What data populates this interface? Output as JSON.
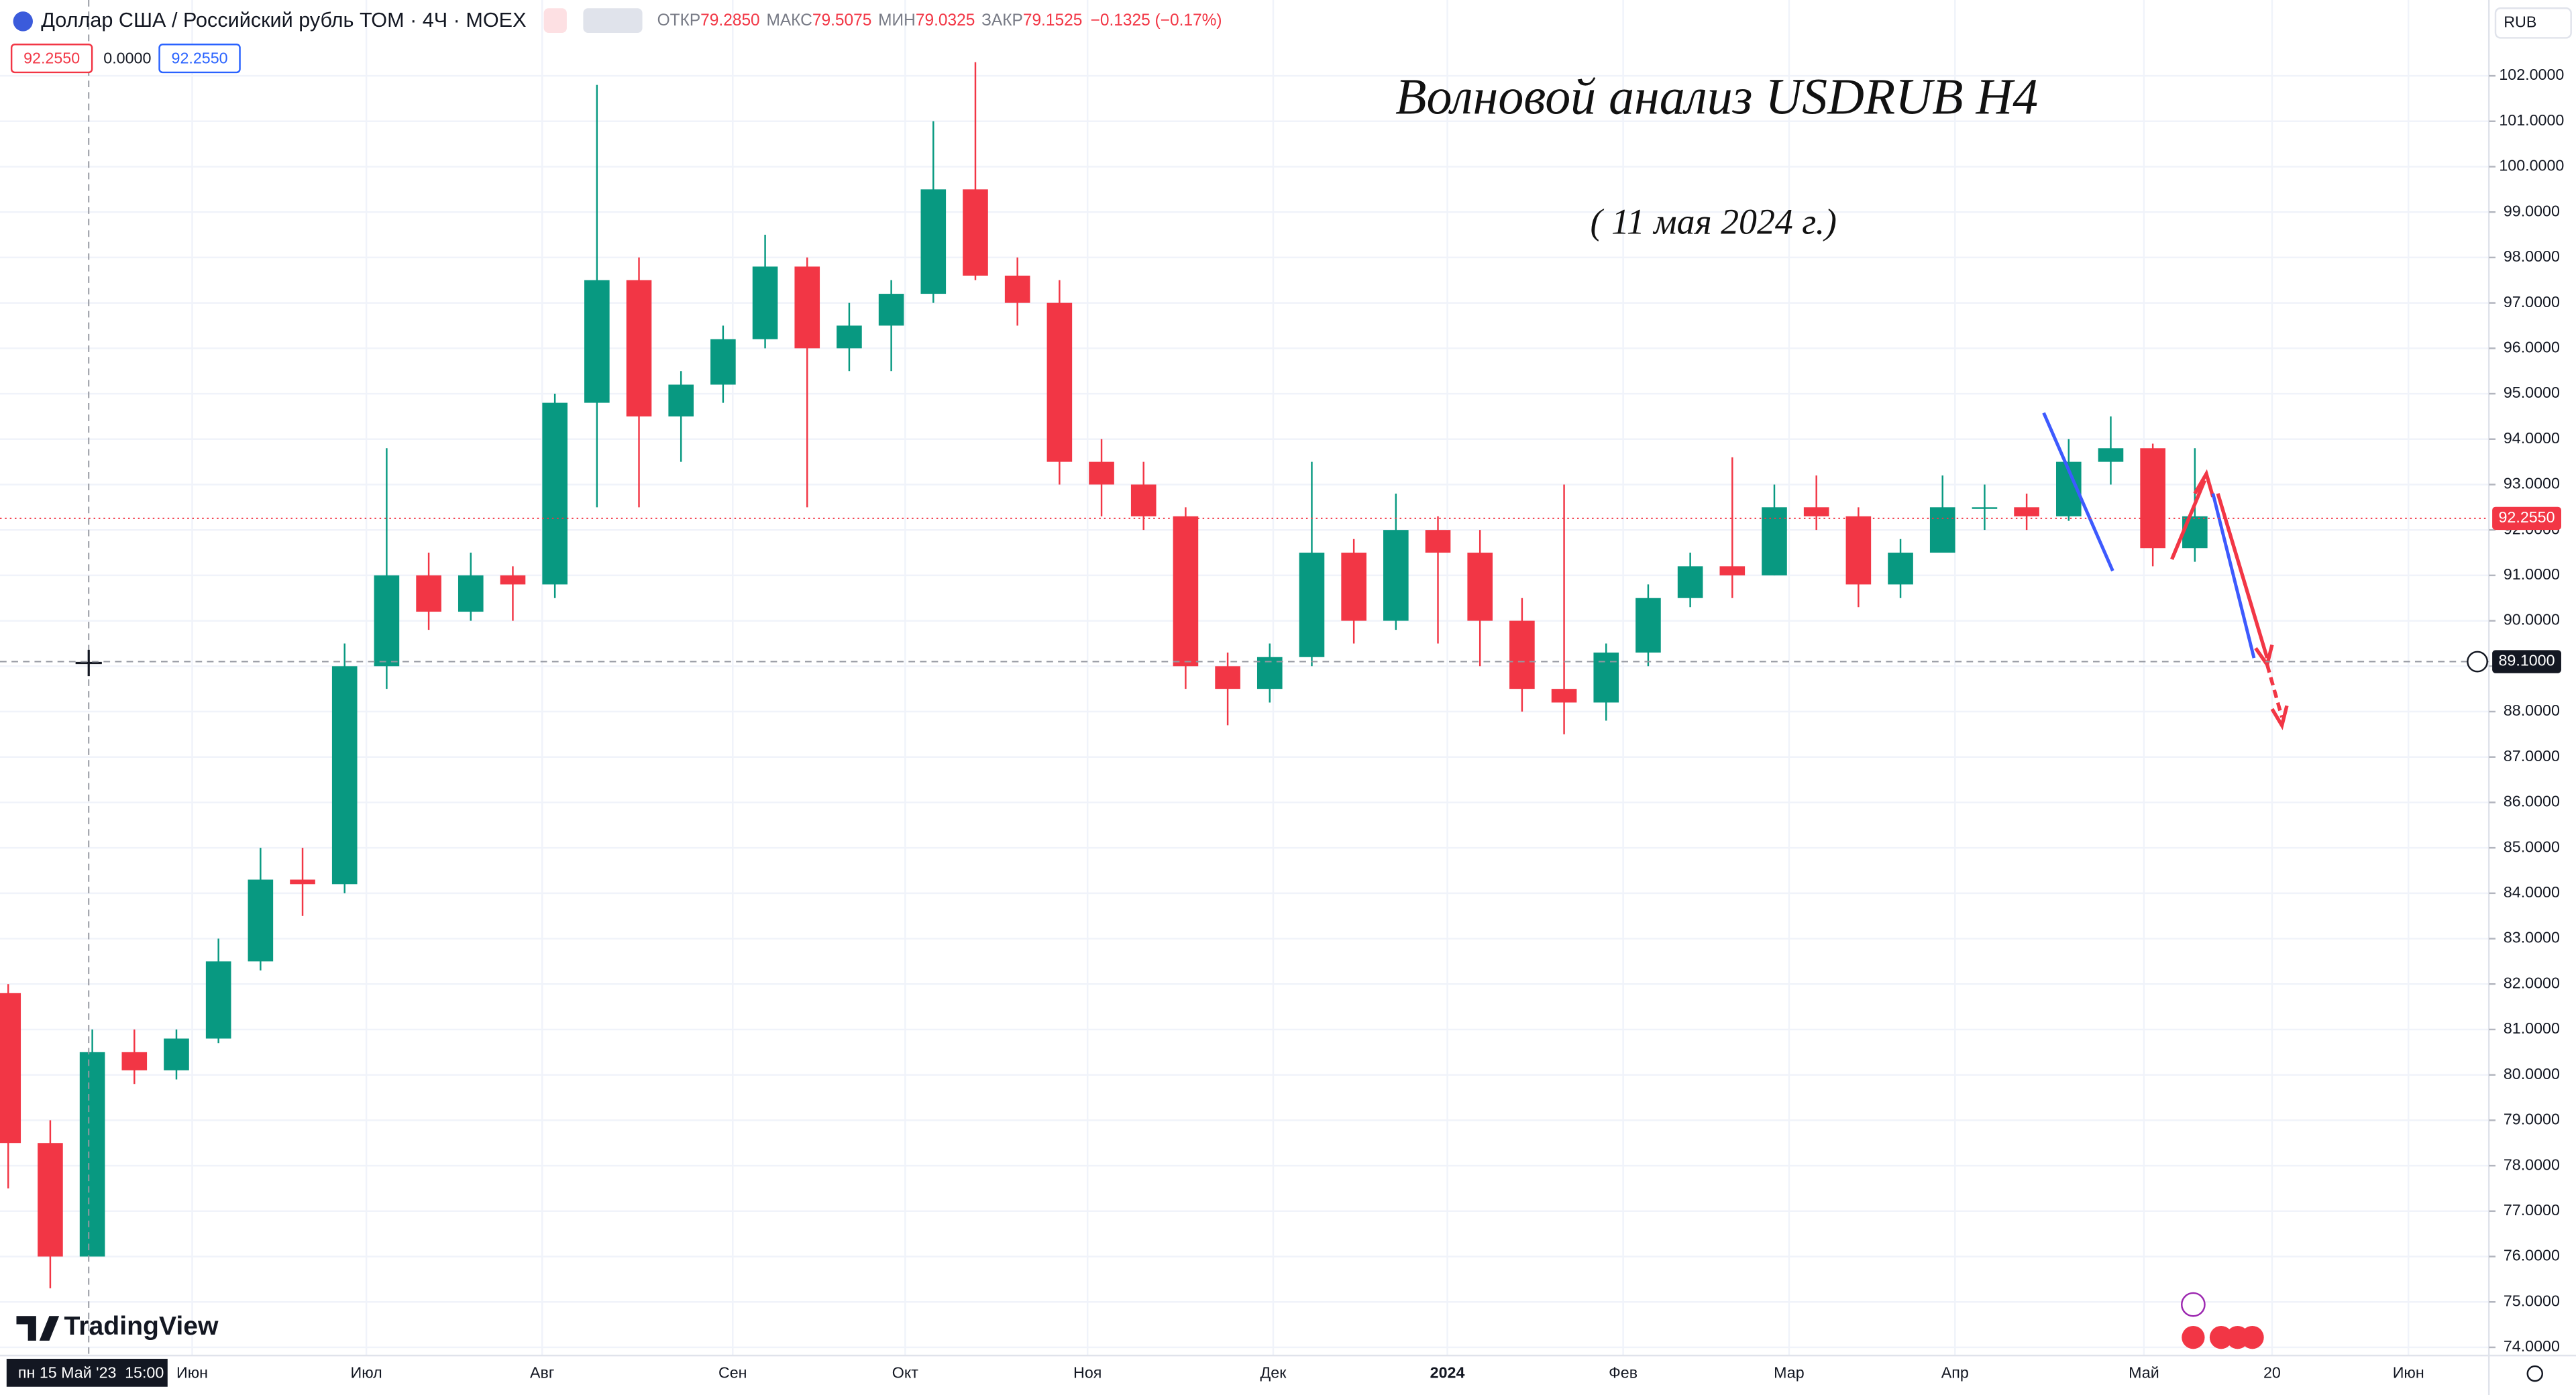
{
  "header": {
    "symbol": "Доллар США / Российский рубль ТОМ · 4Ч · MOEX",
    "open_label": "ОТКР",
    "open": "79.2850",
    "high_label": "МАКС",
    "high": "79.5075",
    "low_label": "МИН",
    "low": "79.0325",
    "close_label": "ЗАКР",
    "close": "79.1525",
    "change": "−0.1325 (−0.17%)",
    "box_left": "92.2550",
    "box_mid": "0.0000",
    "box_right": "92.2550",
    "currency": "RUB",
    "logo": "TradingView"
  },
  "chart_data": {
    "type": "candlestick",
    "title": "Волновой анализ USDRUB H4",
    "subtitle": "( 11 мая 2024 г.)",
    "up_color": "#089981",
    "down_color": "#f23645",
    "grid": true,
    "open": [
      81.8,
      78.5,
      76,
      80.5,
      80.1,
      80.8,
      82.5,
      84.3,
      84.2,
      89,
      91,
      90.2,
      91,
      90.8,
      94.8,
      97.5,
      94.5,
      95.2,
      96.2,
      97.8,
      96,
      96.5,
      97.2,
      99.5,
      97.6,
      97,
      93.5,
      93,
      92.3,
      89,
      88.5,
      89.2,
      91.5,
      90,
      92,
      91.5,
      90,
      88.5,
      88.2,
      89.3,
      90.5,
      91.2,
      91,
      92.5,
      92.3,
      90.8,
      91.5,
      92.5,
      92.5,
      92.3,
      93.5,
      93.8,
      91.6
    ],
    "high": [
      82,
      79,
      81,
      81,
      81,
      83,
      85,
      85,
      89.5,
      93.8,
      91.5,
      91.5,
      91.2,
      95,
      101.8,
      98,
      95.5,
      96.5,
      98.5,
      98,
      97,
      97.5,
      101,
      102.3,
      98,
      97.5,
      94,
      93.5,
      92.5,
      89.3,
      89.5,
      93.5,
      91.8,
      92.8,
      92.3,
      92,
      90.5,
      93,
      89.5,
      90.8,
      91.5,
      93.6,
      93,
      93.2,
      92.5,
      91.8,
      93.2,
      93,
      92.8,
      94,
      94.5,
      93.9,
      93.8
    ],
    "low": [
      77.5,
      75.3,
      76,
      79.8,
      79.9,
      80.7,
      82.3,
      83.5,
      84,
      88.5,
      89.8,
      90,
      90,
      90.5,
      92.5,
      92.5,
      93.5,
      94.8,
      96,
      92.5,
      95.5,
      95.5,
      97,
      97.5,
      96.5,
      93,
      92.3,
      92,
      88.5,
      87.7,
      88.2,
      89,
      89.5,
      89.8,
      89.5,
      89,
      88,
      87.5,
      87.8,
      89,
      90.3,
      90.5,
      91,
      92,
      90.3,
      90.5,
      91.5,
      92,
      92,
      92.2,
      93,
      91.2,
      91.3
    ],
    "close": [
      78.5,
      76,
      80.5,
      80.1,
      80.8,
      82.5,
      84.3,
      84.2,
      89,
      91,
      90.2,
      91,
      90.8,
      94.8,
      97.5,
      94.5,
      95.2,
      96.2,
      97.8,
      96,
      96.5,
      97.2,
      99.5,
      97.6,
      97,
      93.5,
      93,
      92.3,
      89,
      88.5,
      89.2,
      91.5,
      90,
      92,
      91.5,
      90,
      88.5,
      88.2,
      89.3,
      90.5,
      91.2,
      91,
      92.5,
      92.3,
      90.8,
      91.5,
      92.5,
      92.5,
      92.3,
      93.5,
      93.8,
      91.6,
      92.3
    ],
    "ylim": [
      73.82,
      103.67
    ],
    "yticks": [
      {
        "value": 74,
        "label": "74.0000"
      },
      {
        "value": 75,
        "label": "75.0000"
      },
      {
        "value": 76,
        "label": "76.0000"
      },
      {
        "value": 77,
        "label": "77.0000"
      },
      {
        "value": 78,
        "label": "78.0000"
      },
      {
        "value": 79,
        "label": "79.0000"
      },
      {
        "value": 80,
        "label": "80.0000"
      },
      {
        "value": 81,
        "label": "81.0000"
      },
      {
        "value": 82,
        "label": "82.0000"
      },
      {
        "value": 83,
        "label": "83.0000"
      },
      {
        "value": 84,
        "label": "84.0000"
      },
      {
        "value": 85,
        "label": "85.0000"
      },
      {
        "value": 86,
        "label": "86.0000"
      },
      {
        "value": 87,
        "label": "87.0000"
      },
      {
        "value": 88,
        "label": "88.0000"
      },
      {
        "value": 89,
        "label": "89.0000"
      },
      {
        "value": 90,
        "label": "90.0000"
      },
      {
        "value": 91,
        "label": "91.0000"
      },
      {
        "value": 92,
        "label": "92.0000"
      },
      {
        "value": 93,
        "label": "93.0000"
      },
      {
        "value": 94,
        "label": "94.0000"
      },
      {
        "value": 95,
        "label": "95.0000"
      },
      {
        "value": 96,
        "label": "96.0000"
      },
      {
        "value": 97,
        "label": "97.0000"
      },
      {
        "value": 98,
        "label": "98.0000"
      },
      {
        "value": 99,
        "label": "99.0000"
      },
      {
        "value": 100,
        "label": "100.0000"
      },
      {
        "value": 101,
        "label": "101.0000"
      },
      {
        "value": 102,
        "label": "102.0000"
      }
    ],
    "x_labels": [
      "Июн",
      "Июл",
      "Авг",
      "Сен",
      "Окт",
      "Ноя",
      "Дек",
      "2024",
      "Фев",
      "Мар",
      "Апр",
      "Май",
      "20",
      "Июн"
    ],
    "last_price": {
      "value": 92.255,
      "label": "92.2550"
    },
    "crosshair": {
      "value": 89.1,
      "label": "89.1000"
    },
    "crosshair_time": "пн 15 Май '23",
    "crosshair_hour": "15:00"
  }
}
